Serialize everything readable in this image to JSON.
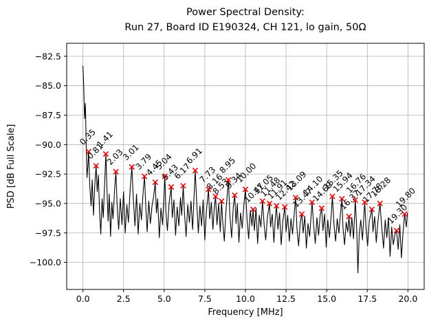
{
  "figure": {
    "title_line1": "Power Spectral Density:",
    "title_line2": "Run 27, Board ID E190324, CH 121, lo gain, 50Ω"
  },
  "chart_data": {
    "type": "line",
    "title": "Power Spectral Density:\nRun 27, Board ID E190324, CH 121, lo gain, 50Ω",
    "xlabel": "Frequency [MHz]",
    "ylabel": "PSD [dB Full Scale]",
    "xlim": [
      -1.0,
      21.0
    ],
    "ylim": [
      -102.3,
      -81.4
    ],
    "grid": true,
    "grid_color": "#b0b0b0",
    "line_color": "#000000",
    "marker": "x",
    "marker_color": "#ff0000",
    "annotation_color": "#000000",
    "xticks": [
      {
        "v": 0.0,
        "label": "0.0"
      },
      {
        "v": 2.5,
        "label": "2.5"
      },
      {
        "v": 5.0,
        "label": "5.0"
      },
      {
        "v": 7.5,
        "label": "7.5"
      },
      {
        "v": 10.0,
        "label": "10.0"
      },
      {
        "v": 12.5,
        "label": "12.5"
      },
      {
        "v": 15.0,
        "label": "15.0"
      },
      {
        "v": 17.5,
        "label": "17.5"
      },
      {
        "v": 20.0,
        "label": "20.0"
      }
    ],
    "yticks": [
      {
        "v": -82.5,
        "label": "−82.5"
      },
      {
        "v": -85.0,
        "label": "−85.0"
      },
      {
        "v": -87.5,
        "label": "−87.5"
      },
      {
        "v": -90.0,
        "label": "−90.0"
      },
      {
        "v": -92.5,
        "label": "−92.5"
      },
      {
        "v": -95.0,
        "label": "−95.0"
      },
      {
        "v": -97.5,
        "label": "−97.5"
      },
      {
        "v": -100.0,
        "label": "−100.0"
      }
    ],
    "peaks": [
      {
        "label": "0.35",
        "f": 0.35,
        "psd": -90.6
      },
      {
        "label": "0.81",
        "f": 0.81,
        "psd": -91.8
      },
      {
        "label": "1.41",
        "f": 1.41,
        "psd": -90.8
      },
      {
        "label": "2.03",
        "f": 2.03,
        "psd": -92.3
      },
      {
        "label": "3.01",
        "f": 3.01,
        "psd": -91.9
      },
      {
        "label": "3.79",
        "f": 3.79,
        "psd": -92.7
      },
      {
        "label": "4.45",
        "f": 4.45,
        "psd": -93.2
      },
      {
        "label": "5.04",
        "f": 5.04,
        "psd": -92.7
      },
      {
        "label": "5.43",
        "f": 5.43,
        "psd": -93.6
      },
      {
        "label": "6.17",
        "f": 6.17,
        "psd": -93.5
      },
      {
        "label": "6.91",
        "f": 6.91,
        "psd": -92.2
      },
      {
        "label": "7.73",
        "f": 7.73,
        "psd": -93.8
      },
      {
        "label": "8.16",
        "f": 8.16,
        "psd": -94.4
      },
      {
        "label": "8.53",
        "f": 8.53,
        "psd": -94.8
      },
      {
        "label": "8.95",
        "f": 8.95,
        "psd": -93.0
      },
      {
        "label": "9.34",
        "f": 9.34,
        "psd": -94.3
      },
      {
        "label": "10.00",
        "f": 10.0,
        "psd": -93.8
      },
      {
        "label": "10.47",
        "f": 10.47,
        "psd": -95.5
      },
      {
        "label": "11.05",
        "f": 11.05,
        "psd": -94.8
      },
      {
        "label": "11.48",
        "f": 11.48,
        "psd": -95.0
      },
      {
        "label": "11.91",
        "f": 11.91,
        "psd": -95.2
      },
      {
        "label": "12.42",
        "f": 12.42,
        "psd": -95.3
      },
      {
        "label": "13.09",
        "f": 13.09,
        "psd": -94.5
      },
      {
        "label": "13.47",
        "f": 13.47,
        "psd": -95.9
      },
      {
        "label": "14.10",
        "f": 14.1,
        "psd": -94.9
      },
      {
        "label": "14.69",
        "f": 14.69,
        "psd": -95.4
      },
      {
        "label": "15.35",
        "f": 15.35,
        "psd": -94.4
      },
      {
        "label": "15.94",
        "f": 15.94,
        "psd": -94.6
      },
      {
        "label": "16.37",
        "f": 16.37,
        "psd": -96.1
      },
      {
        "label": "16.76",
        "f": 16.76,
        "psd": -94.7
      },
      {
        "label": "17.34",
        "f": 17.34,
        "psd": -94.9
      },
      {
        "label": "17.78",
        "f": 17.78,
        "psd": -95.5
      },
      {
        "label": "18.28",
        "f": 18.28,
        "psd": -95.0
      },
      {
        "label": "19.30",
        "f": 19.3,
        "psd": -97.3
      },
      {
        "label": "19.80",
        "f": 19.8,
        "psd": -95.9
      }
    ],
    "curve": [
      [
        0,
        -83.3
      ],
      [
        0.05,
        -85.0
      ],
      [
        0.1,
        -87.8
      ],
      [
        0.15,
        -86.5
      ],
      [
        0.2,
        -90.0
      ],
      [
        0.25,
        -92.8
      ],
      [
        0.3,
        -91.9
      ],
      [
        0.35,
        -90.6
      ],
      [
        0.42,
        -93.5
      ],
      [
        0.5,
        -95.2
      ],
      [
        0.57,
        -93.0
      ],
      [
        0.65,
        -96.0
      ],
      [
        0.73,
        -93.4
      ],
      [
        0.81,
        -91.8
      ],
      [
        0.88,
        -94.0
      ],
      [
        0.95,
        -92.6
      ],
      [
        1.02,
        -95.5
      ],
      [
        1.1,
        -97.6
      ],
      [
        1.18,
        -94.6
      ],
      [
        1.25,
        -96.2
      ],
      [
        1.33,
        -93.4
      ],
      [
        1.41,
        -90.8
      ],
      [
        1.48,
        -93.8
      ],
      [
        1.55,
        -96.5
      ],
      [
        1.62,
        -94.2
      ],
      [
        1.7,
        -97.8
      ],
      [
        1.78,
        -94.9
      ],
      [
        1.85,
        -96.3
      ],
      [
        1.95,
        -93.8
      ],
      [
        2.03,
        -92.3
      ],
      [
        2.1,
        -95.0
      ],
      [
        2.2,
        -97.2
      ],
      [
        2.3,
        -94.6
      ],
      [
        2.4,
        -96.8
      ],
      [
        2.5,
        -94.0
      ],
      [
        2.6,
        -97.5
      ],
      [
        2.7,
        -95.1
      ],
      [
        2.8,
        -96.6
      ],
      [
        2.9,
        -93.9
      ],
      [
        3.01,
        -91.9
      ],
      [
        3.1,
        -94.6
      ],
      [
        3.2,
        -96.9
      ],
      [
        3.3,
        -94.2
      ],
      [
        3.4,
        -97.6
      ],
      [
        3.5,
        -95.0
      ],
      [
        3.6,
        -96.4
      ],
      [
        3.7,
        -94.1
      ],
      [
        3.79,
        -92.7
      ],
      [
        3.87,
        -95.3
      ],
      [
        3.95,
        -97.4
      ],
      [
        4.05,
        -94.8
      ],
      [
        4.15,
        -96.7
      ],
      [
        4.25,
        -95.2
      ],
      [
        4.35,
        -94.4
      ],
      [
        4.45,
        -93.2
      ],
      [
        4.52,
        -95.8
      ],
      [
        4.6,
        -94.6
      ],
      [
        4.7,
        -97.9
      ],
      [
        4.8,
        -95.4
      ],
      [
        4.9,
        -96.8
      ],
      [
        5.04,
        -92.7
      ],
      [
        5.1,
        -95.6
      ],
      [
        5.2,
        -97.3
      ],
      [
        5.3,
        -95.0
      ],
      [
        5.43,
        -93.6
      ],
      [
        5.5,
        -96.2
      ],
      [
        5.6,
        -94.7
      ],
      [
        5.7,
        -97.7
      ],
      [
        5.8,
        -95.3
      ],
      [
        5.9,
        -96.9
      ],
      [
        6.0,
        -94.5
      ],
      [
        6.08,
        -96.0
      ],
      [
        6.17,
        -93.5
      ],
      [
        6.25,
        -95.9
      ],
      [
        6.35,
        -97.8
      ],
      [
        6.45,
        -95.1
      ],
      [
        6.55,
        -96.6
      ],
      [
        6.65,
        -94.8
      ],
      [
        6.75,
        -97.2
      ],
      [
        6.83,
        -94.6
      ],
      [
        6.91,
        -92.2
      ],
      [
        7.0,
        -94.9
      ],
      [
        7.1,
        -97.5
      ],
      [
        7.2,
        -95.2
      ],
      [
        7.3,
        -96.9
      ],
      [
        7.4,
        -94.7
      ],
      [
        7.5,
        -98.1
      ],
      [
        7.6,
        -95.6
      ],
      [
        7.73,
        -93.8
      ],
      [
        7.8,
        -96.3
      ],
      [
        7.9,
        -94.9
      ],
      [
        8.0,
        -97.2
      ],
      [
        8.08,
        -95.4
      ],
      [
        8.16,
        -94.4
      ],
      [
        8.25,
        -96.8
      ],
      [
        8.35,
        -95.0
      ],
      [
        8.45,
        -97.4
      ],
      [
        8.53,
        -94.8
      ],
      [
        8.6,
        -96.5
      ],
      [
        8.7,
        -98.2
      ],
      [
        8.8,
        -95.7
      ],
      [
        8.95,
        -93.0
      ],
      [
        9.05,
        -96.1
      ],
      [
        9.15,
        -97.9
      ],
      [
        9.25,
        -95.3
      ],
      [
        9.34,
        -94.3
      ],
      [
        9.42,
        -96.7
      ],
      [
        9.5,
        -95.0
      ],
      [
        9.6,
        -98.3
      ],
      [
        9.7,
        -95.8
      ],
      [
        9.8,
        -97.1
      ],
      [
        9.9,
        -95.2
      ],
      [
        10.0,
        -93.8
      ],
      [
        10.1,
        -96.4
      ],
      [
        10.2,
        -98.0
      ],
      [
        10.3,
        -95.6
      ],
      [
        10.4,
        -96.9
      ],
      [
        10.47,
        -95.5
      ],
      [
        10.55,
        -97.3
      ],
      [
        10.65,
        -95.4
      ],
      [
        10.75,
        -98.4
      ],
      [
        10.85,
        -96.0
      ],
      [
        10.95,
        -97.0
      ],
      [
        11.05,
        -94.8
      ],
      [
        11.15,
        -96.8
      ],
      [
        11.25,
        -98.1
      ],
      [
        11.35,
        -96.2
      ],
      [
        11.48,
        -95.0
      ],
      [
        11.55,
        -97.0
      ],
      [
        11.65,
        -95.9
      ],
      [
        11.75,
        -98.3
      ],
      [
        11.83,
        -96.4
      ],
      [
        11.91,
        -95.2
      ],
      [
        12.0,
        -97.2
      ],
      [
        12.1,
        -95.8
      ],
      [
        12.2,
        -98.5
      ],
      [
        12.3,
        -96.5
      ],
      [
        12.42,
        -95.3
      ],
      [
        12.5,
        -97.4
      ],
      [
        12.6,
        -96.0
      ],
      [
        12.7,
        -98.2
      ],
      [
        12.8,
        -96.3
      ],
      [
        12.9,
        -97.6
      ],
      [
        13.0,
        -95.9
      ],
      [
        13.09,
        -94.5
      ],
      [
        13.17,
        -97.1
      ],
      [
        13.27,
        -98.6
      ],
      [
        13.37,
        -96.6
      ],
      [
        13.47,
        -95.9
      ],
      [
        13.55,
        -97.5
      ],
      [
        13.65,
        -96.1
      ],
      [
        13.75,
        -98.8
      ],
      [
        13.85,
        -96.7
      ],
      [
        13.95,
        -97.8
      ],
      [
        14.1,
        -94.9
      ],
      [
        14.2,
        -96.9
      ],
      [
        14.3,
        -98.4
      ],
      [
        14.4,
        -96.2
      ],
      [
        14.5,
        -97.7
      ],
      [
        14.6,
        -96.0
      ],
      [
        14.69,
        -95.4
      ],
      [
        14.77,
        -97.3
      ],
      [
        14.87,
        -95.9
      ],
      [
        14.97,
        -98.7
      ],
      [
        15.07,
        -96.4
      ],
      [
        15.17,
        -97.9
      ],
      [
        15.27,
        -96.1
      ],
      [
        15.35,
        -94.4
      ],
      [
        15.45,
        -96.8
      ],
      [
        15.55,
        -98.2
      ],
      [
        15.65,
        -96.3
      ],
      [
        15.75,
        -97.5
      ],
      [
        15.85,
        -95.8
      ],
      [
        15.94,
        -94.6
      ],
      [
        16.0,
        -97.0
      ],
      [
        16.1,
        -98.5
      ],
      [
        16.2,
        -96.6
      ],
      [
        16.3,
        -97.4
      ],
      [
        16.37,
        -96.1
      ],
      [
        16.45,
        -97.8
      ],
      [
        16.55,
        -96.2
      ],
      [
        16.65,
        -98.0
      ],
      [
        16.76,
        -94.7
      ],
      [
        16.85,
        -97.2
      ],
      [
        16.92,
        -100.9
      ],
      [
        17.0,
        -97.6
      ],
      [
        17.1,
        -96.4
      ],
      [
        17.2,
        -98.1
      ],
      [
        17.28,
        -96.2
      ],
      [
        17.34,
        -94.9
      ],
      [
        17.42,
        -97.1
      ],
      [
        17.52,
        -98.6
      ],
      [
        17.62,
        -96.5
      ],
      [
        17.78,
        -95.5
      ],
      [
        17.85,
        -97.4
      ],
      [
        17.95,
        -96.1
      ],
      [
        18.05,
        -98.3
      ],
      [
        18.15,
        -96.6
      ],
      [
        18.28,
        -95.0
      ],
      [
        18.4,
        -97.2
      ],
      [
        18.5,
        -98.8
      ],
      [
        18.6,
        -96.4
      ],
      [
        18.7,
        -97.9
      ],
      [
        18.8,
        -96.2
      ],
      [
        18.9,
        -99.5
      ],
      [
        19.0,
        -97.0
      ],
      [
        19.1,
        -98.5
      ],
      [
        19.2,
        -97.6
      ],
      [
        19.3,
        -97.3
      ],
      [
        19.4,
        -98.9
      ],
      [
        19.5,
        -96.8
      ],
      [
        19.6,
        -99.6
      ],
      [
        19.7,
        -97.4
      ],
      [
        19.8,
        -95.9
      ],
      [
        19.9,
        -97.0
      ],
      [
        19.97,
        -95.8
      ]
    ]
  }
}
